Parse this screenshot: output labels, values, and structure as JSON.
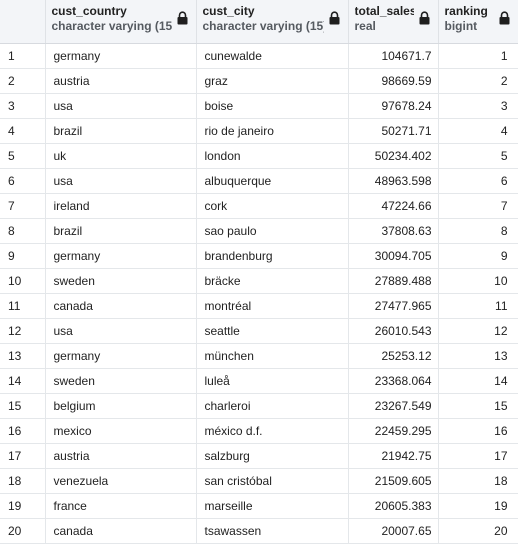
{
  "columns": [
    {
      "name": "cust_country",
      "type": "character varying (15)"
    },
    {
      "name": "cust_city",
      "type": "character varying (15)"
    },
    {
      "name": "total_sales",
      "type": "real"
    },
    {
      "name": "ranking",
      "type": "bigint"
    }
  ],
  "rows": [
    {
      "idx": "1",
      "country": "germany",
      "city": "cunewalde",
      "sales": "104671.7",
      "rank": "1"
    },
    {
      "idx": "2",
      "country": "austria",
      "city": "graz",
      "sales": "98669.59",
      "rank": "2"
    },
    {
      "idx": "3",
      "country": "usa",
      "city": "boise",
      "sales": "97678.24",
      "rank": "3"
    },
    {
      "idx": "4",
      "country": "brazil",
      "city": "rio de janeiro",
      "sales": "50271.71",
      "rank": "4"
    },
    {
      "idx": "5",
      "country": "uk",
      "city": "london",
      "sales": "50234.402",
      "rank": "5"
    },
    {
      "idx": "6",
      "country": "usa",
      "city": "albuquerque",
      "sales": "48963.598",
      "rank": "6"
    },
    {
      "idx": "7",
      "country": "ireland",
      "city": "cork",
      "sales": "47224.66",
      "rank": "7"
    },
    {
      "idx": "8",
      "country": "brazil",
      "city": "sao paulo",
      "sales": "37808.63",
      "rank": "8"
    },
    {
      "idx": "9",
      "country": "germany",
      "city": "brandenburg",
      "sales": "30094.705",
      "rank": "9"
    },
    {
      "idx": "10",
      "country": "sweden",
      "city": "bräcke",
      "sales": "27889.488",
      "rank": "10"
    },
    {
      "idx": "11",
      "country": "canada",
      "city": "montréal",
      "sales": "27477.965",
      "rank": "11"
    },
    {
      "idx": "12",
      "country": "usa",
      "city": "seattle",
      "sales": "26010.543",
      "rank": "12"
    },
    {
      "idx": "13",
      "country": "germany",
      "city": "münchen",
      "sales": "25253.12",
      "rank": "13"
    },
    {
      "idx": "14",
      "country": "sweden",
      "city": "luleå",
      "sales": "23368.064",
      "rank": "14"
    },
    {
      "idx": "15",
      "country": "belgium",
      "city": "charleroi",
      "sales": "23267.549",
      "rank": "15"
    },
    {
      "idx": "16",
      "country": "mexico",
      "city": "méxico d.f.",
      "sales": "22459.295",
      "rank": "16"
    },
    {
      "idx": "17",
      "country": "austria",
      "city": "salzburg",
      "sales": "21942.75",
      "rank": "17"
    },
    {
      "idx": "18",
      "country": "venezuela",
      "city": "san cristóbal",
      "sales": "21509.605",
      "rank": "18"
    },
    {
      "idx": "19",
      "country": "france",
      "city": "marseille",
      "sales": "20605.383",
      "rank": "19"
    },
    {
      "idx": "20",
      "country": "canada",
      "city": "tsawassen",
      "sales": "20007.65",
      "rank": "20"
    }
  ],
  "icons": {
    "column_lock": "lock-icon"
  }
}
